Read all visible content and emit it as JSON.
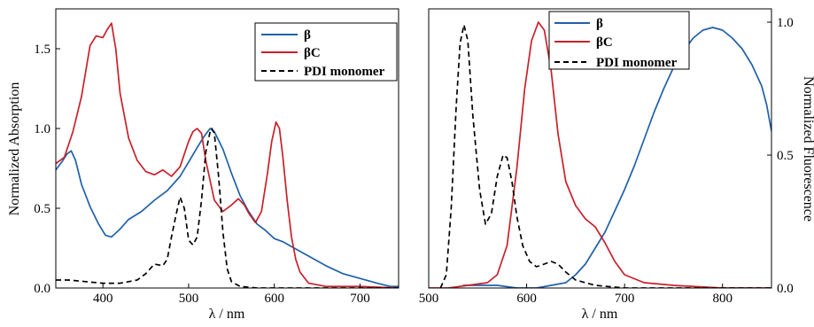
{
  "figure": {
    "colors": {
      "beta": "#2060A8",
      "betaC": "#C8202A",
      "pdi": "#000000"
    }
  },
  "chart_data": [
    {
      "type": "line",
      "panel": "left",
      "title": "",
      "xlabel": "λ / nm",
      "ylabel": "Normalized Absorption",
      "xlim": [
        345,
        745
      ],
      "ylim": [
        0.0,
        1.75
      ],
      "xticks": [
        400,
        500,
        600,
        700
      ],
      "xtick_labels": [
        "400",
        "500",
        "600",
        "700"
      ],
      "yticks": [
        0.0,
        0.5,
        1.0,
        1.5
      ],
      "ytick_labels": [
        "0.0",
        "0.5",
        "1.0",
        "1.5"
      ],
      "legend": {
        "position": "top-right",
        "entries": [
          "β",
          "βC",
          "PDI monomer"
        ]
      },
      "series": [
        {
          "name": "β",
          "color": "#2060A8",
          "dash": "solid",
          "x": [
            345,
            352,
            358,
            363,
            368,
            375,
            385,
            395,
            403,
            410,
            420,
            430,
            445,
            460,
            475,
            490,
            500,
            510,
            518,
            525,
            530,
            540,
            550,
            560,
            570,
            580,
            590,
            600,
            610,
            620,
            640,
            660,
            680,
            700,
            720,
            735,
            745
          ],
          "y": [
            0.74,
            0.79,
            0.84,
            0.86,
            0.8,
            0.65,
            0.51,
            0.4,
            0.33,
            0.32,
            0.37,
            0.43,
            0.48,
            0.55,
            0.61,
            0.7,
            0.79,
            0.88,
            0.95,
            1.0,
            0.98,
            0.87,
            0.72,
            0.58,
            0.48,
            0.4,
            0.36,
            0.31,
            0.29,
            0.26,
            0.2,
            0.14,
            0.09,
            0.06,
            0.03,
            0.01,
            0.01
          ]
        },
        {
          "name": "βC",
          "color": "#C8202A",
          "dash": "solid",
          "x": [
            345,
            355,
            365,
            375,
            385,
            392,
            400,
            405,
            410,
            415,
            420,
            430,
            440,
            450,
            460,
            470,
            480,
            490,
            500,
            505,
            510,
            515,
            520,
            530,
            540,
            550,
            558,
            565,
            570,
            578,
            585,
            592,
            597,
            602,
            606,
            610,
            615,
            620,
            625,
            630,
            640,
            660,
            700,
            745
          ],
          "y": [
            0.78,
            0.82,
            0.98,
            1.2,
            1.52,
            1.58,
            1.57,
            1.62,
            1.66,
            1.5,
            1.22,
            0.94,
            0.8,
            0.73,
            0.71,
            0.74,
            0.7,
            0.76,
            0.92,
            0.98,
            1.0,
            0.97,
            0.8,
            0.55,
            0.48,
            0.52,
            0.56,
            0.52,
            0.47,
            0.41,
            0.48,
            0.72,
            0.92,
            1.04,
            1.0,
            0.82,
            0.55,
            0.32,
            0.18,
            0.1,
            0.03,
            0.01,
            0.01,
            0.0
          ]
        },
        {
          "name": "PDI monomer",
          "color": "#000000",
          "dash": "dashed",
          "x": [
            345,
            360,
            380,
            400,
            420,
            440,
            450,
            455,
            460,
            470,
            475,
            480,
            485,
            490,
            495,
            500,
            505,
            510,
            515,
            520,
            525,
            527,
            530,
            535,
            540,
            545,
            550,
            560,
            580,
            745
          ],
          "y": [
            0.05,
            0.05,
            0.04,
            0.03,
            0.03,
            0.05,
            0.09,
            0.12,
            0.15,
            0.14,
            0.18,
            0.32,
            0.45,
            0.57,
            0.5,
            0.3,
            0.27,
            0.32,
            0.55,
            0.85,
            0.98,
            1.0,
            0.97,
            0.7,
            0.35,
            0.12,
            0.04,
            0.01,
            0.0,
            0.0
          ]
        }
      ]
    },
    {
      "type": "line",
      "panel": "right",
      "title": "",
      "xlabel": "λ / nm",
      "ylabel": "Normalized Fluorescence",
      "y_axis_side": "right",
      "xlim": [
        500,
        850
      ],
      "ylim": [
        0.0,
        1.05
      ],
      "xticks": [
        500,
        600,
        700,
        800
      ],
      "xtick_labels": [
        "500",
        "600",
        "700",
        "800"
      ],
      "yticks": [
        0.0,
        0.5,
        1.0
      ],
      "ytick_labels": [
        "0.0",
        "0.5",
        "1.0"
      ],
      "legend": {
        "position": "top-left",
        "entries": [
          "β",
          "βC",
          "PDI monomer"
        ]
      },
      "series": [
        {
          "name": "β",
          "color": "#2060A8",
          "dash": "solid",
          "x": [
            535,
            550,
            570,
            590,
            610,
            625,
            640,
            650,
            660,
            670,
            680,
            690,
            700,
            710,
            720,
            730,
            740,
            750,
            760,
            770,
            780,
            790,
            800,
            810,
            820,
            830,
            840,
            845,
            850
          ],
          "y": [
            0.01,
            0.01,
            0.01,
            0.0,
            0.0,
            0.01,
            0.02,
            0.05,
            0.09,
            0.15,
            0.21,
            0.29,
            0.37,
            0.46,
            0.56,
            0.66,
            0.75,
            0.83,
            0.89,
            0.94,
            0.97,
            0.98,
            0.97,
            0.94,
            0.9,
            0.84,
            0.76,
            0.69,
            0.59
          ]
        },
        {
          "name": "βC",
          "color": "#C8202A",
          "dash": "solid",
          "x": [
            500,
            520,
            540,
            560,
            570,
            580,
            590,
            598,
            605,
            612,
            618,
            625,
            632,
            640,
            650,
            660,
            670,
            680,
            690,
            700,
            720,
            750,
            800,
            850
          ],
          "y": [
            0.0,
            0.0,
            0.01,
            0.02,
            0.05,
            0.16,
            0.45,
            0.75,
            0.93,
            1.0,
            0.97,
            0.82,
            0.58,
            0.4,
            0.31,
            0.26,
            0.23,
            0.17,
            0.1,
            0.05,
            0.02,
            0.01,
            0.0,
            0.0
          ]
        },
        {
          "name": "PDI monomer",
          "color": "#000000",
          "dash": "dashed",
          "x": [
            512,
            518,
            523,
            528,
            532,
            536,
            540,
            545,
            552,
            558,
            564,
            570,
            576,
            580,
            585,
            590,
            596,
            603,
            610,
            618,
            625,
            632,
            640,
            650,
            670,
            700,
            740,
            780,
            850
          ],
          "y": [
            0.0,
            0.05,
            0.3,
            0.68,
            0.92,
            0.99,
            0.93,
            0.65,
            0.37,
            0.24,
            0.28,
            0.42,
            0.5,
            0.49,
            0.4,
            0.27,
            0.16,
            0.1,
            0.08,
            0.09,
            0.1,
            0.09,
            0.06,
            0.03,
            0.01,
            0.0,
            0.0,
            0.0,
            0.0
          ]
        }
      ]
    }
  ]
}
